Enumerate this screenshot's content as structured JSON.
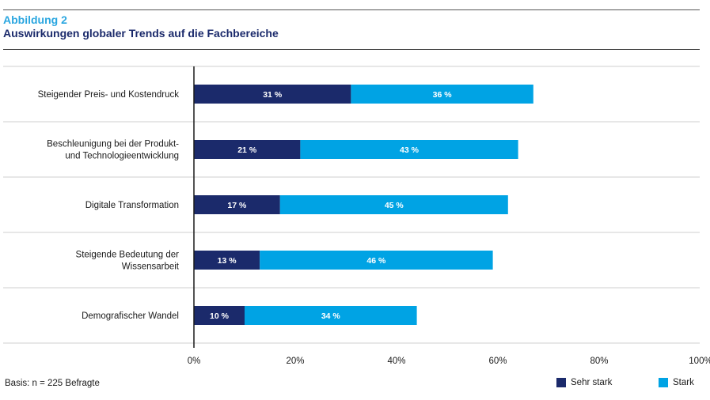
{
  "header": {
    "kicker": "Abbildung 2",
    "title": "Auswirkungen globaler Trends auf die Fachbereiche"
  },
  "footer": {
    "basis": "Basis: n = 225 Befragte"
  },
  "colors": {
    "sehr_stark": "#1b2a6b",
    "stark": "#00a3e4"
  },
  "chart_data": {
    "type": "bar",
    "orientation": "horizontal",
    "stacked": true,
    "categories": [
      [
        "Steigender Preis- und Kostendruck"
      ],
      [
        "Beschleunigung bei der Produkt-",
        "und Technologieentwicklung"
      ],
      [
        "Digitale Transformation"
      ],
      [
        "Steigende Bedeutung der",
        "Wissensarbeit"
      ],
      [
        "Demografischer Wandel"
      ]
    ],
    "series": [
      {
        "name": "Sehr stark",
        "values": [
          31,
          21,
          17,
          13,
          10
        ],
        "labels": [
          "31 %",
          "21 %",
          "17 %",
          "13 %",
          "10 %"
        ]
      },
      {
        "name": "Stark",
        "values": [
          36,
          43,
          45,
          46,
          34
        ],
        "labels": [
          "36 %",
          "43 %",
          "45 %",
          "46 %",
          "34 %"
        ]
      }
    ],
    "xlim": [
      0,
      100
    ],
    "xticks": [
      "0%",
      "20%",
      "40%",
      "60%",
      "80%",
      "100%"
    ],
    "legend_position": "bottom-right"
  }
}
